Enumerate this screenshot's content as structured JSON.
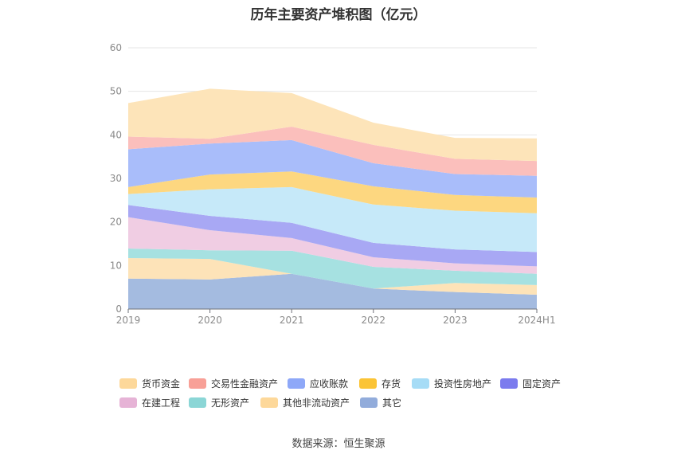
{
  "page": {
    "title": "历年主要资产堆积图（亿元）",
    "source": "数据来源：恒生聚源"
  },
  "chart_data": {
    "type": "area",
    "stacked": true,
    "title": "历年主要资产堆积图（亿元）",
    "x": [
      "2019",
      "2020",
      "2021",
      "2022",
      "2023",
      "2024H1"
    ],
    "yticks": [
      0,
      10,
      20,
      30,
      40,
      50,
      60
    ],
    "ylim": [
      0,
      60
    ],
    "grid": true,
    "legend_position": "bottom",
    "series": [
      {
        "name": "其它",
        "color": "#a4bbe0",
        "values": [
          7.0,
          6.8,
          8.1,
          4.7,
          3.9,
          3.3
        ]
      },
      {
        "name": "其他非流动资产",
        "color": "#fde3b8",
        "values": [
          4.7,
          4.7,
          0.0,
          0.0,
          2.1,
          2.2
        ]
      },
      {
        "name": "无形资产",
        "color": "#a6e1e1",
        "values": [
          2.2,
          2.0,
          5.3,
          5.0,
          2.8,
          2.6
        ]
      },
      {
        "name": "在建工程",
        "color": "#f0cde3",
        "values": [
          7.2,
          4.6,
          2.9,
          2.2,
          1.7,
          1.7
        ]
      },
      {
        "name": "固定资产",
        "color": "#a8a8f4",
        "values": [
          2.8,
          3.3,
          3.5,
          3.3,
          3.2,
          3.3
        ]
      },
      {
        "name": "投资性房地产",
        "color": "#c6e9f9",
        "values": [
          2.5,
          6.1,
          8.2,
          8.8,
          8.9,
          8.9
        ]
      },
      {
        "name": "存货",
        "color": "#fdd780",
        "values": [
          1.6,
          3.4,
          3.6,
          4.2,
          3.6,
          3.6
        ]
      },
      {
        "name": "应收账款",
        "color": "#a9bdfa",
        "values": [
          8.7,
          7.1,
          7.2,
          5.3,
          4.8,
          5.0
        ]
      },
      {
        "name": "交易性金融资产",
        "color": "#fbbfbc",
        "values": [
          2.9,
          1.1,
          3.1,
          4.2,
          3.5,
          3.4
        ]
      },
      {
        "name": "货币资金",
        "color": "#fde4b9",
        "values": [
          7.7,
          11.5,
          7.7,
          5.1,
          4.8,
          5.2
        ]
      }
    ],
    "legend": [
      {
        "name": "货币资金",
        "swatch": "#fdd89a"
      },
      {
        "name": "交易性金融资产",
        "swatch": "#f8a097"
      },
      {
        "name": "应收账款",
        "swatch": "#8ea8f8"
      },
      {
        "name": "存货",
        "swatch": "#fbc436"
      },
      {
        "name": "投资性房地产",
        "swatch": "#a6dcf6"
      },
      {
        "name": "固定资产",
        "swatch": "#7b7bee"
      },
      {
        "name": "在建工程",
        "swatch": "#e6b3d6"
      },
      {
        "name": "无形资产",
        "swatch": "#8bd6d6"
      },
      {
        "name": "其他非流动资产",
        "swatch": "#fdd89a"
      },
      {
        "name": "其它",
        "swatch": "#92acdb"
      }
    ]
  }
}
